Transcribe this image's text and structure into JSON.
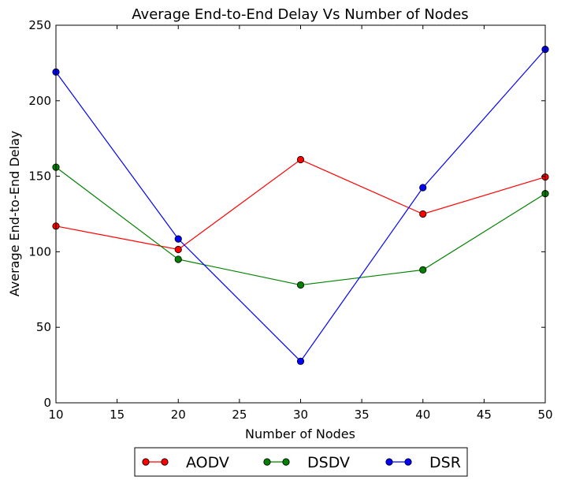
{
  "chart_data": {
    "type": "line",
    "title": "Average End-to-End Delay Vs Number of Nodes",
    "xlabel": "Number of Nodes",
    "ylabel": "Average End-to-End Delay",
    "xlim": [
      10,
      50
    ],
    "ylim": [
      0,
      250
    ],
    "xticks": [
      10,
      15,
      20,
      25,
      30,
      35,
      40,
      45,
      50
    ],
    "yticks": [
      0,
      50,
      100,
      150,
      200,
      250
    ],
    "x": [
      10,
      20,
      30,
      40,
      50
    ],
    "grid": false,
    "legend_position": "bottom-center",
    "series": [
      {
        "name": "AODV",
        "color": "#ff0000",
        "values": [
          117,
          101.5,
          161,
          125,
          149.5
        ]
      },
      {
        "name": "DSDV",
        "color": "#008000",
        "values": [
          156,
          95,
          78,
          88,
          138.5
        ]
      },
      {
        "name": "DSR",
        "color": "#0000ff",
        "values": [
          219,
          108.5,
          27.5,
          142.5,
          234
        ]
      }
    ]
  }
}
